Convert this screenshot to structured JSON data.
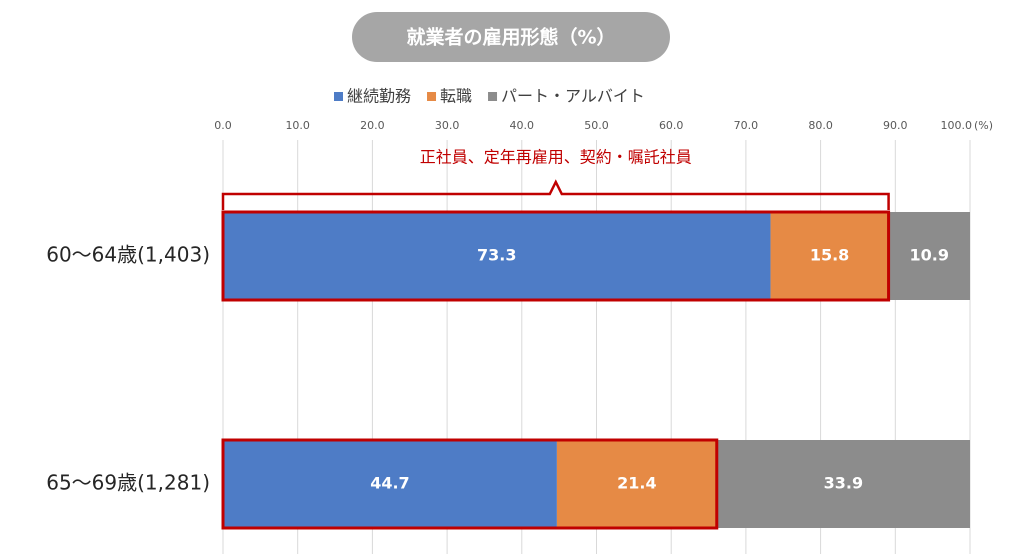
{
  "chart_data": {
    "type": "stacked-barh",
    "title": "就業者の雇用形態（%）",
    "categories": [
      "60～64歳(1,403)",
      "65～69歳(1,281)"
    ],
    "series": [
      {
        "name": "継続勤務",
        "color": "#4e7cc6",
        "values": [
          73.3,
          44.7
        ]
      },
      {
        "name": "転職",
        "color": "#e68a45",
        "values": [
          15.8,
          21.4
        ]
      },
      {
        "name": "パート・アルバイト",
        "color": "#8c8c8c",
        "values": [
          10.9,
          33.9
        ]
      }
    ],
    "xlim": [
      0,
      100
    ],
    "xticks": [
      {
        "value": 0,
        "label": "0.0"
      },
      {
        "value": 10,
        "label": "10.0"
      },
      {
        "value": 20,
        "label": "20.0"
      },
      {
        "value": 30,
        "label": "30.0"
      },
      {
        "value": 40,
        "label": "40.0"
      },
      {
        "value": 50,
        "label": "50.0"
      },
      {
        "value": 60,
        "label": "60.0"
      },
      {
        "value": 70,
        "label": "70.0"
      },
      {
        "value": 80,
        "label": "80.0"
      },
      {
        "value": 90,
        "label": "90.0"
      },
      {
        "value": 100,
        "label": "100.0"
      }
    ],
    "x_unit": "(%)",
    "annotation": "正社員、定年再雇用、契約・嘱託社員",
    "highlight_color": "#c00000",
    "grid": true
  }
}
